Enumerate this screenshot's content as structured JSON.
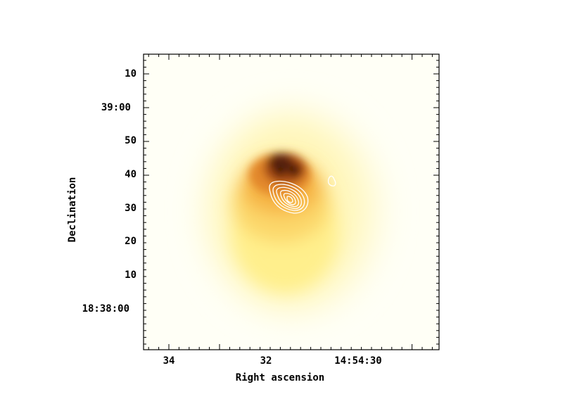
{
  "figure": {
    "xlabel": "Right ascension",
    "ylabel": "Declination",
    "x_ticks": [
      "34",
      "32",
      "14:54:30"
    ],
    "y_ticks": [
      "10",
      "39:00",
      "50",
      "40",
      "30",
      "20",
      "10",
      "18:38:00"
    ]
  },
  "colors": {
    "colormap": [
      "#fffff6",
      "#fff9c8",
      "#ffe98a",
      "#fbc64e",
      "#e68a26",
      "#9a3f0c",
      "#2a0c02"
    ],
    "contour": "#ffffff",
    "frame": "#000000"
  }
}
